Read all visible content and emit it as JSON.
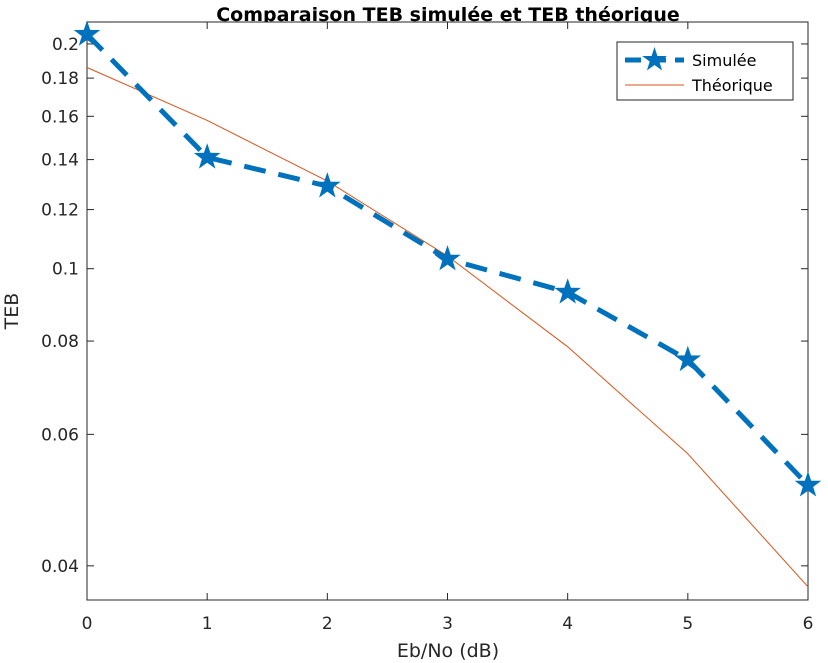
{
  "chart_data": {
    "type": "line",
    "title": "Comparaison TEB simulée et TEB théorique",
    "xlabel": "Eb/No (dB)",
    "ylabel": "TEB",
    "xlim": [
      0,
      6
    ],
    "ylim": [
      0.036,
      0.214
    ],
    "yscale": "log",
    "grid": false,
    "legend_position": "top-right",
    "x_ticks": [
      0,
      1,
      2,
      3,
      4,
      5,
      6
    ],
    "x_tick_labels": [
      "0",
      "1",
      "2",
      "3",
      "4",
      "5",
      "6"
    ],
    "y_ticks": [
      0.04,
      0.06,
      0.08,
      0.1,
      0.12,
      0.14,
      0.16,
      0.18,
      0.2
    ],
    "y_tick_labels": [
      "0.04",
      "0.06",
      "0.08",
      "0.1",
      "0.12",
      "0.14",
      "0.16",
      "0.18",
      "0.2"
    ],
    "x": [
      0,
      1,
      2,
      3,
      4,
      5,
      6
    ],
    "series": [
      {
        "name": "Simulée",
        "values": [
          0.206,
          0.141,
          0.129,
          0.103,
          0.093,
          0.0755,
          0.0513
        ],
        "color": "#0072BD",
        "style": "dashed",
        "marker": "star"
      },
      {
        "name": "Théorique",
        "values": [
          0.186,
          0.158,
          0.131,
          0.104,
          0.0786,
          0.0565,
          0.0375
        ],
        "color": "#D95319",
        "style": "solid",
        "marker": "none"
      }
    ]
  }
}
